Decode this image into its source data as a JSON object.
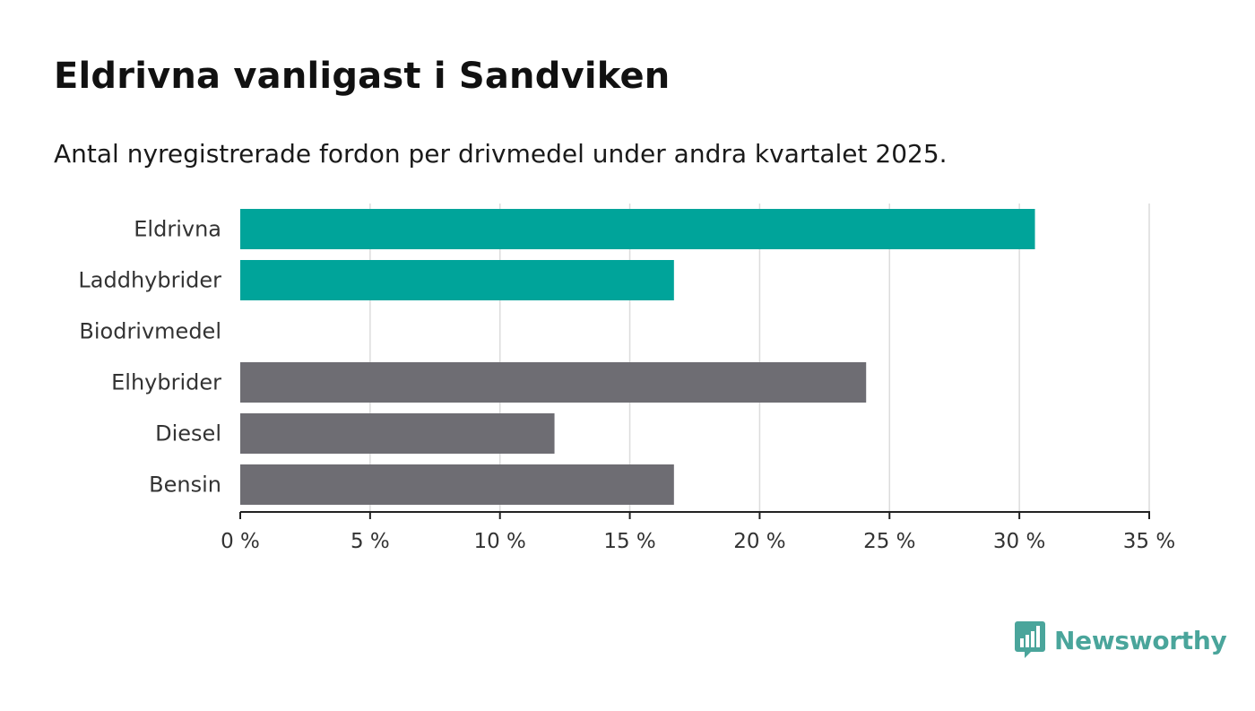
{
  "header": {
    "title": "Eldrivna vanligast i Sandviken",
    "subtitle": "Antal nyregistrerade fordon per drivmedel under andra kvartalet 2025."
  },
  "chart_data": {
    "type": "bar",
    "orientation": "horizontal",
    "categories": [
      "Eldrivna",
      "Laddhybrider",
      "Biodrivmedel",
      "Elhybrider",
      "Diesel",
      "Bensin"
    ],
    "values": [
      30.6,
      16.7,
      0,
      24.1,
      12.1,
      16.7
    ],
    "colors": [
      "#00a49a",
      "#00a49a",
      "#00a49a",
      "#6e6d73",
      "#6e6d73",
      "#6e6d73"
    ],
    "xlim": [
      0,
      35
    ],
    "xticks": [
      0,
      5,
      10,
      15,
      20,
      25,
      30,
      35
    ],
    "xtick_labels": [
      "0 %",
      "5 %",
      "10 %",
      "15 %",
      "20 %",
      "25 %",
      "30 %",
      "35 %"
    ],
    "xlabel": "",
    "ylabel": "",
    "grid": "vertical"
  },
  "branding": {
    "logo_text": "Newsworthy",
    "logo_icon": "bar-chart-speech-bubble-icon",
    "logo_color": "#4aa59b"
  }
}
